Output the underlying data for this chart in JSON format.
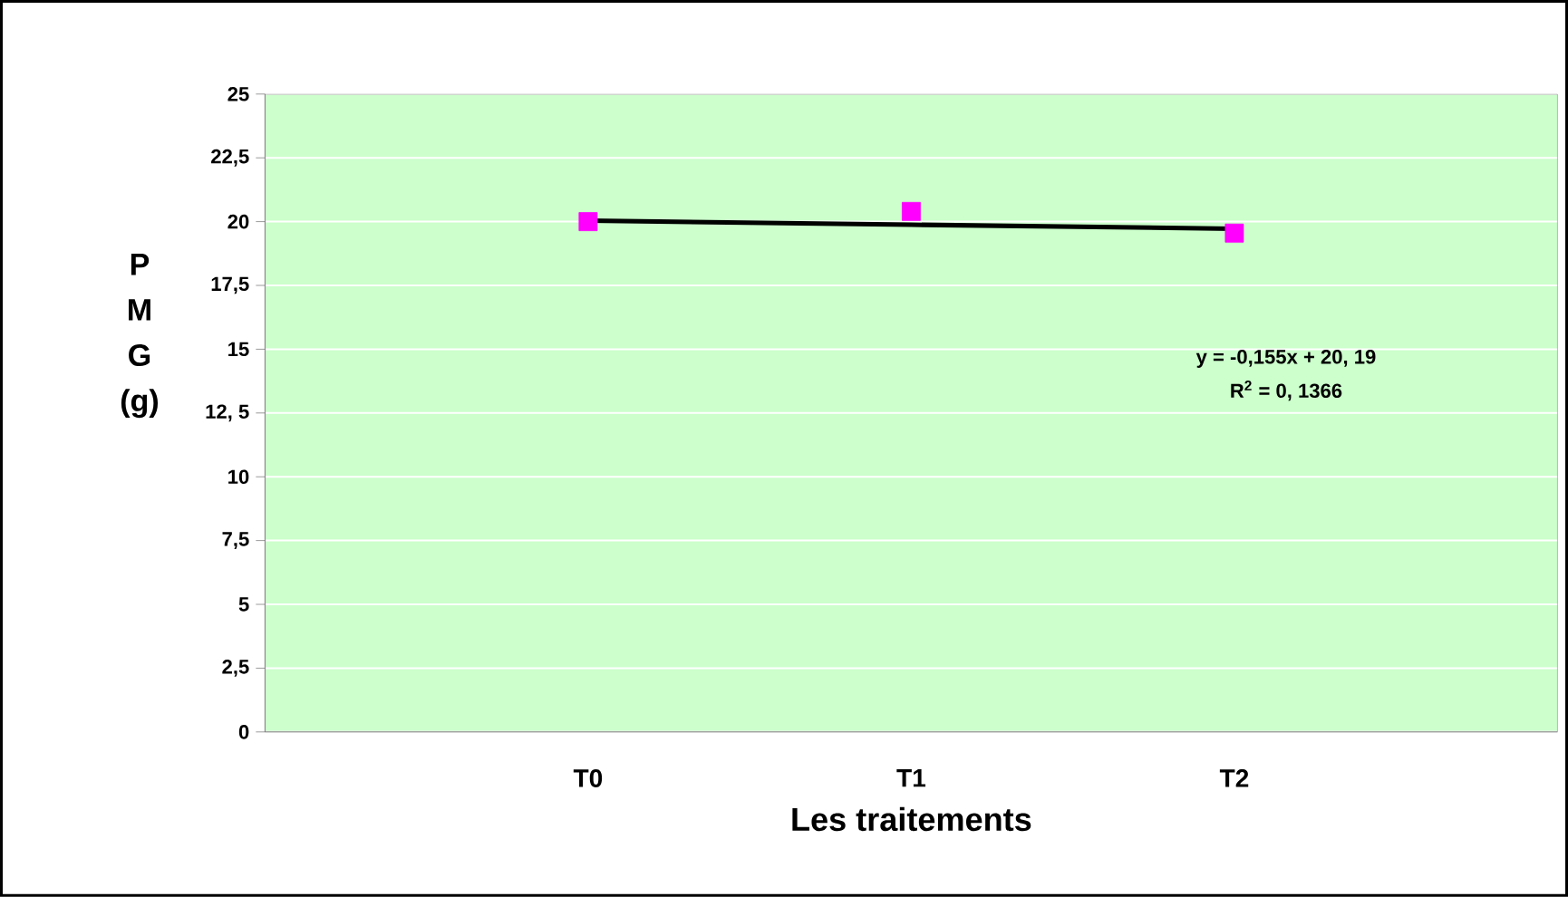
{
  "chart_data": {
    "type": "scatter",
    "xlabel": "Les traitements",
    "ylabel": "P M G (g)",
    "categories": [
      "T0",
      "T1",
      "T2"
    ],
    "series": [
      {
        "color": "#ff00ff",
        "marker": "square",
        "values": [
          20.0,
          20.4,
          19.55
        ]
      },
      {
        "type": "line",
        "color": "#000000",
        "marker": "none",
        "values": [
          20.04,
          19.88,
          19.72
        ]
      }
    ],
    "ylim": [
      0,
      25
    ],
    "yticks": [
      0,
      {
        "value": 2.5,
        "label": "2,5"
      },
      5,
      {
        "value": 7.5,
        "label": "7,5"
      },
      10,
      {
        "value": 12.5,
        "label": "12, 5"
      },
      15,
      {
        "value": 17.5,
        "label": "17,5"
      },
      20,
      {
        "value": 22.5,
        "label": "22,5"
      },
      25
    ],
    "grid": "y",
    "annotations": [
      "y = -0,155x + 20, 19",
      "R$^{2}$ = 0, 1366"
    ]
  }
}
